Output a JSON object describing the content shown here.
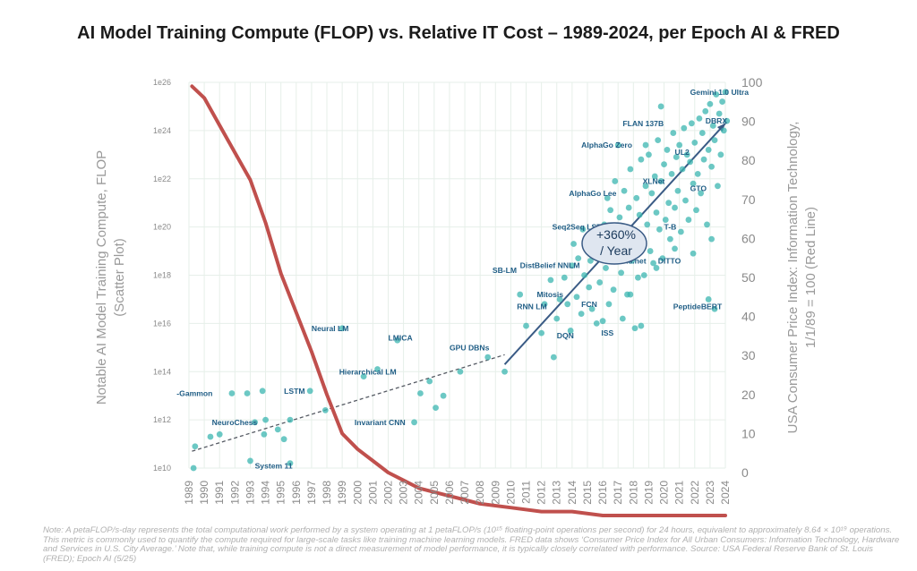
{
  "title": "AI Model Training Compute (FLOP) vs. Relative IT Cost – 1989-2024, per Epoch AI & FRED",
  "note": "Note: A petaFLOP/s-day represents the total computational work performed by a system operating at 1 petaFLOP/s (10¹⁵ floating-point operations per second) for 24 hours, equivalent to approximately 8.64 × 10¹⁹ operations. This metric is commonly used to quantify the compute required for large-scale tasks like training machine learning models. FRED data shows ‘Consumer Price Index for All Urban Consumers: Information Technology, Hardware and Services in U.S. City Average.’ Note that, while training compute is not a direct measurement of model performance, it is typically closely correlated with performance. Source: USA Federal Reserve Bank of St. Louis (FRED); Epoch AI (5/25)",
  "annotation": {
    "line1": "+360%",
    "line2": "/ Year"
  },
  "colors": {
    "scatter": "#3bb6b0",
    "cpi_line": "#c0504d",
    "arrow": "#3a5b85",
    "trend": "#555a63",
    "labels": "#1f5d85",
    "axis_text": "#9a9a9a",
    "grid": "#e6efe9"
  },
  "chart_data": {
    "type": "scatter",
    "xlabel": "",
    "ylabel": "Notable AI Model Training Compute, FLOP (Scatter Plot)",
    "y2label": "USA Consumer Price Index: Information Technology, 1/1/89 = 100 (Red Line)",
    "xlim": [
      1989,
      2024
    ],
    "ylim_log10": [
      10,
      26
    ],
    "y2lim": [
      0,
      100
    ],
    "x_ticks": [
      "1989",
      "1990",
      "1991",
      "1992",
      "1993",
      "1994",
      "1995",
      "1996",
      "1997",
      "1998",
      "1999",
      "2000",
      "2001",
      "2002",
      "2003",
      "2004",
      "2005",
      "2006",
      "2007",
      "2008",
      "2009",
      "2010",
      "2011",
      "2012",
      "2013",
      "2014",
      "2015",
      "2016",
      "2017",
      "2018",
      "2019",
      "2020",
      "2021",
      "2022",
      "2023",
      "2024"
    ],
    "y_ticks": [
      "1e10",
      "1e12",
      "1e14",
      "1e16",
      "1e18",
      "1e20",
      "1e22",
      "1e24",
      "1e26"
    ],
    "y2_ticks": [
      "0",
      "10",
      "20",
      "30",
      "40",
      "50",
      "60",
      "70",
      "80",
      "90",
      "100"
    ],
    "grid": true,
    "series": [
      {
        "name": "",
        "kind": "scatter",
        "points_log10_flop": [
          [
            1989.3,
            10.0
          ],
          [
            1989.4,
            10.9
          ],
          [
            1990.4,
            11.3
          ],
          [
            1991.0,
            11.4
          ],
          [
            1991.8,
            13.1
          ],
          [
            1992.8,
            13.1
          ],
          [
            1993.0,
            10.3
          ],
          [
            1993.3,
            11.9
          ],
          [
            1993.8,
            13.2
          ],
          [
            1993.9,
            11.4
          ],
          [
            1994.0,
            12.0
          ],
          [
            1994.8,
            11.6
          ],
          [
            1995.2,
            11.2
          ],
          [
            1995.6,
            10.2
          ],
          [
            1995.6,
            12.0
          ],
          [
            1996.9,
            13.2
          ],
          [
            1997.9,
            12.4
          ],
          [
            1999.0,
            15.8
          ],
          [
            2000.4,
            13.8
          ],
          [
            2001.3,
            14.1
          ],
          [
            2002.6,
            15.3
          ],
          [
            2003.7,
            11.9
          ],
          [
            2004.1,
            13.1
          ],
          [
            2004.7,
            13.6
          ],
          [
            2005.1,
            12.5
          ],
          [
            2005.6,
            13.0
          ],
          [
            2006.7,
            14.0
          ],
          [
            2008.5,
            14.6
          ],
          [
            2009.6,
            14.0
          ],
          [
            2010.6,
            17.2
          ],
          [
            2011.0,
            15.9
          ],
          [
            2012.0,
            15.6
          ],
          [
            2012.2,
            16.8
          ],
          [
            2012.6,
            17.8
          ],
          [
            2012.8,
            14.6
          ],
          [
            2013.0,
            16.2
          ],
          [
            2013.2,
            17.0
          ],
          [
            2013.5,
            17.9
          ],
          [
            2013.7,
            16.8
          ],
          [
            2013.9,
            15.7
          ],
          [
            2014.0,
            18.4
          ],
          [
            2014.1,
            19.3
          ],
          [
            2014.3,
            17.1
          ],
          [
            2014.4,
            18.7
          ],
          [
            2014.6,
            16.4
          ],
          [
            2014.8,
            18.0
          ],
          [
            2015.0,
            19.5
          ],
          [
            2015.1,
            17.5
          ],
          [
            2015.3,
            16.6
          ],
          [
            2015.5,
            18.9
          ],
          [
            2015.6,
            16.0
          ],
          [
            2015.8,
            17.7
          ],
          [
            2015.9,
            19.8
          ],
          [
            2016.1,
            20.1
          ],
          [
            2016.2,
            18.3
          ],
          [
            2016.4,
            16.8
          ],
          [
            2016.5,
            20.7
          ],
          [
            2016.7,
            17.4
          ],
          [
            2016.8,
            21.9
          ],
          [
            2016.9,
            19.0
          ],
          [
            2017.0,
            23.4
          ],
          [
            2017.1,
            20.4
          ],
          [
            2017.2,
            18.1
          ],
          [
            2017.3,
            16.2
          ],
          [
            2017.4,
            21.5
          ],
          [
            2017.5,
            19.4
          ],
          [
            2017.6,
            17.2
          ],
          [
            2017.7,
            20.8
          ],
          [
            2017.8,
            22.4
          ],
          [
            2017.9,
            18.6
          ],
          [
            2018.0,
            19.7
          ],
          [
            2018.1,
            15.8
          ],
          [
            2018.2,
            21.2
          ],
          [
            2018.3,
            17.9
          ],
          [
            2018.4,
            20.5
          ],
          [
            2018.5,
            22.8
          ],
          [
            2018.6,
            19.2
          ],
          [
            2018.7,
            18.0
          ],
          [
            2018.8,
            21.7
          ],
          [
            2018.9,
            20.1
          ],
          [
            2019.0,
            23.0
          ],
          [
            2019.1,
            19.0
          ],
          [
            2019.2,
            21.4
          ],
          [
            2019.3,
            18.5
          ],
          [
            2019.4,
            22.1
          ],
          [
            2019.5,
            20.6
          ],
          [
            2019.6,
            23.6
          ],
          [
            2019.7,
            19.9
          ],
          [
            2019.8,
            21.9
          ],
          [
            2019.9,
            18.7
          ],
          [
            2020.0,
            22.6
          ],
          [
            2020.1,
            20.3
          ],
          [
            2020.2,
            23.2
          ],
          [
            2020.3,
            21.0
          ],
          [
            2020.4,
            19.5
          ],
          [
            2020.5,
            22.2
          ],
          [
            2020.6,
            23.9
          ],
          [
            2020.7,
            20.8
          ],
          [
            2020.8,
            22.9
          ],
          [
            2020.9,
            21.5
          ],
          [
            2021.0,
            23.4
          ],
          [
            2021.1,
            19.8
          ],
          [
            2021.2,
            22.4
          ],
          [
            2021.3,
            24.1
          ],
          [
            2021.4,
            21.1
          ],
          [
            2021.5,
            23.0
          ],
          [
            2021.6,
            20.3
          ],
          [
            2021.7,
            22.7
          ],
          [
            2021.8,
            24.3
          ],
          [
            2021.9,
            21.8
          ],
          [
            2022.0,
            23.5
          ],
          [
            2022.1,
            20.7
          ],
          [
            2022.2,
            22.2
          ],
          [
            2022.3,
            24.5
          ],
          [
            2022.4,
            21.4
          ],
          [
            2022.5,
            23.9
          ],
          [
            2022.6,
            22.8
          ],
          [
            2022.7,
            24.8
          ],
          [
            2022.8,
            20.1
          ],
          [
            2022.9,
            23.2
          ],
          [
            2023.0,
            25.1
          ],
          [
            2023.1,
            22.5
          ],
          [
            2023.2,
            24.2
          ],
          [
            2023.3,
            23.6
          ],
          [
            2023.4,
            25.5
          ],
          [
            2023.5,
            21.7
          ],
          [
            2023.6,
            24.7
          ],
          [
            2023.7,
            23.0
          ],
          [
            2023.8,
            25.2
          ],
          [
            2023.9,
            24.0
          ],
          [
            2024.0,
            25.6
          ],
          [
            2024.1,
            24.4
          ],
          [
            2024.2,
            25.0
          ],
          [
            2024.3,
            24.7
          ],
          [
            2019.5,
            18.3
          ],
          [
            2020.7,
            19.1
          ],
          [
            2023.1,
            19.5
          ],
          [
            2022.9,
            17.0
          ],
          [
            2023.3,
            16.6
          ],
          [
            2021.9,
            18.9
          ],
          [
            2018.5,
            15.9
          ],
          [
            2016.0,
            16.1
          ],
          [
            2017.8,
            17.2
          ],
          [
            2015.2,
            18.6
          ],
          [
            2014.7,
            19.9
          ],
          [
            2016.3,
            21.2
          ],
          [
            2019.8,
            25.0
          ],
          [
            2018.8,
            23.4
          ]
        ]
      },
      {
        "name": "",
        "kind": "line",
        "x": [
          1989.2,
          1990.0,
          1991.0,
          1992.0,
          1993.0,
          1994.0,
          1995.0,
          1996.0,
          1997.0,
          1998.0,
          1999.0,
          2000.0,
          2001.0,
          2002.0,
          2003.0,
          2004.0,
          2005.0,
          2006.0,
          2007.0,
          2008.0,
          2010.0,
          2012.0,
          2014.0,
          2016.0,
          2018.0,
          2020.0,
          2022.0,
          2024.0
        ],
        "y": [
          99,
          96,
          89,
          82,
          75,
          64,
          51,
          41,
          31,
          20,
          10,
          6,
          3,
          0,
          -2,
          -4,
          -5,
          -6,
          -7,
          -8,
          -9,
          -10,
          -10,
          -11,
          -11,
          -11,
          -11,
          -11
        ]
      }
    ],
    "point_labels": [
      {
        "text": "Gemini 1.0 Ultra",
        "x": 2021.7,
        "y_log10": 25.6
      },
      {
        "text": "FLAN 137B",
        "x": 2017.3,
        "y_log10": 24.3
      },
      {
        "text": "DBRX",
        "x": 2022.7,
        "y_log10": 24.4
      },
      {
        "text": "AlphaGo Zero",
        "x": 2014.6,
        "y_log10": 23.4
      },
      {
        "text": "UL2",
        "x": 2020.7,
        "y_log10": 23.1
      },
      {
        "text": "XLNet",
        "x": 2018.6,
        "y_log10": 21.9
      },
      {
        "text": "GTO",
        "x": 2021.7,
        "y_log10": 21.6
      },
      {
        "text": "AlphaGo Lee",
        "x": 2013.8,
        "y_log10": 21.4
      },
      {
        "text": "Seq2Seq LSTM",
        "x": 2012.7,
        "y_log10": 20.0
      },
      {
        "text": "DistBelief NNLM",
        "x": 2010.6,
        "y_log10": 18.4
      },
      {
        "text": "SB-LM",
        "x": 2008.8,
        "y_log10": 18.2
      },
      {
        "text": "Mitosis",
        "x": 2011.7,
        "y_log10": 17.2
      },
      {
        "text": "RNN LM",
        "x": 2010.4,
        "y_log10": 16.7
      },
      {
        "text": "DITTO",
        "x": 2019.6,
        "y_log10": 18.6
      },
      {
        "text": "PeptideBERT",
        "x": 2020.6,
        "y_log10": 16.7
      },
      {
        "text": "Neural LM",
        "x": 1997.0,
        "y_log10": 15.8
      },
      {
        "text": "LMICA",
        "x": 2002.0,
        "y_log10": 15.4
      },
      {
        "text": "GPU DBNs",
        "x": 2006.0,
        "y_log10": 15.0
      },
      {
        "text": "DQN",
        "x": 2013.0,
        "y_log10": 15.5
      },
      {
        "text": "ISS",
        "x": 2015.9,
        "y_log10": 15.6
      },
      {
        "text": "Hierarchical LM",
        "x": 1998.8,
        "y_log10": 14.0
      },
      {
        "text": "-Gammon",
        "x": 1988.2,
        "y_log10": 13.1
      },
      {
        "text": "LSTM",
        "x": 1995.2,
        "y_log10": 13.2
      },
      {
        "text": "NeuroChess",
        "x": 1990.5,
        "y_log10": 11.9
      },
      {
        "text": "Invariant CNN",
        "x": 1999.8,
        "y_log10": 11.9
      },
      {
        "text": "System 11",
        "x": 1993.3,
        "y_log10": 10.1
      },
      {
        "text": "FCN",
        "x": 2014.6,
        "y_log10": 16.8
      },
      {
        "text": "Trans.net",
        "x": 2016.6,
        "y_log10": 18.6
      },
      {
        "text": "T-B",
        "x": 2020.0,
        "y_log10": 20.0
      }
    ],
    "trend_dashed": {
      "from": [
        1989.2,
        10.7
      ],
      "to": [
        2009.6,
        14.7
      ]
    },
    "trend_arrow": {
      "from": [
        2009.6,
        14.3
      ],
      "to": [
        2024.0,
        24.3
      ]
    }
  }
}
